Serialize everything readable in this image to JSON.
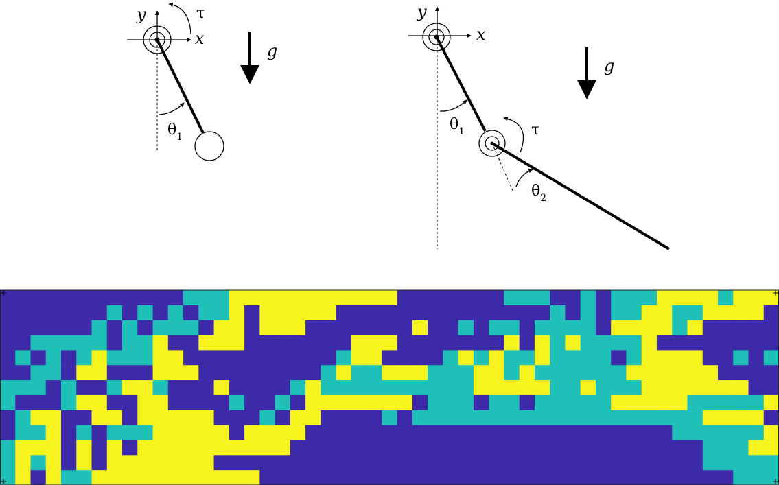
{
  "colors": {
    "background": "#ffffff",
    "ink": "#000000",
    "cls0": "#3c2aa8",
    "cls1": "#1fc0b8",
    "cls2": "#f7f31e"
  },
  "single_pendulum": {
    "axis_y": "y",
    "axis_x": "x",
    "torque": "τ",
    "gravity": "g",
    "angle": "θ",
    "angle_sub": "1"
  },
  "double_pendulum": {
    "axis_y": "y",
    "axis_x": "x",
    "torque": "τ",
    "gravity": "g",
    "angle1": "θ",
    "angle1_sub": "1",
    "angle2": "θ",
    "angle2_sub": "2"
  },
  "policy_map": {
    "cols": 51,
    "rows": 13,
    "legend_classes": [
      "cls0",
      "cls1",
      "cls2"
    ],
    "rows_data": [
      "000000000000111222222222220000000111001011122221222",
      "000000010101011202222200000000000000101011221122220",
      "000000101011102202220000000200101101111022221200000",
      "001111101120022200000002220000000202121111200000000",
      "010101211122000000000012200001212112111101222200101",
      "001102200022200000000121122211122121111112222220000",
      "111010012210002000012111111111122222112111222222200",
      "100012200220000100102222222011101101111122222111112",
      "012200220222220001022000010111111111111111111122220",
      "011201011122222022220000000000000000000000001111112",
      "122202020222222222200000000000000000000000000011122",
      "121202022222220000000000000000000000000000000011111",
      "120211222222222220000000000000000000000000000000111"
    ]
  }
}
